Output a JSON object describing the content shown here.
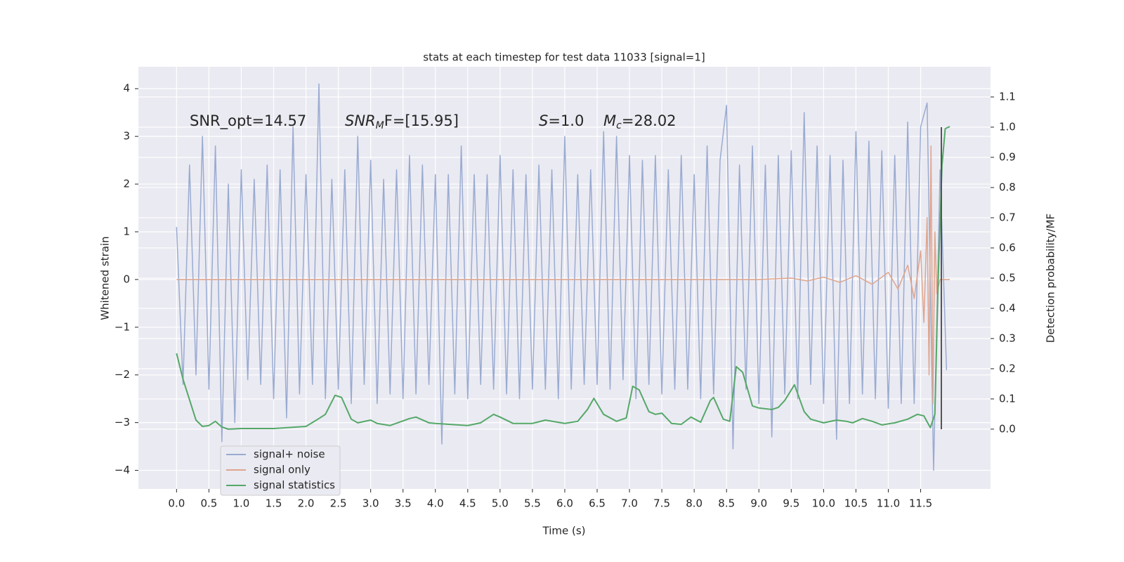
{
  "chart_data": {
    "type": "line",
    "title": "stats at each timestep for test data 11033 [signal=1]",
    "xlabel": "Time (s)",
    "ylabel": "Whitened strain",
    "y2label": "Detection probability/MF",
    "xlim": [
      -0.59,
      12.58
    ],
    "ylim": [
      -4.39,
      4.46
    ],
    "y2lim": [
      -0.198,
      1.2
    ],
    "xticks": [
      {
        "value": 0,
        "label": "0.0"
      },
      0.5,
      {
        "value": 1,
        "label": "1.0"
      },
      1.5,
      {
        "value": 2,
        "label": "2.0"
      },
      2.5,
      {
        "value": 3,
        "label": "3.0"
      },
      3.5,
      {
        "value": 4,
        "label": "4.0"
      },
      4.5,
      {
        "value": 5,
        "label": "5.0"
      },
      5.5,
      {
        "value": 6,
        "label": "6.0"
      },
      6.5,
      {
        "value": 7,
        "label": "7.0"
      },
      7.5,
      {
        "value": 8,
        "label": "8.0"
      },
      8.5,
      {
        "value": 9,
        "label": "9.0"
      },
      9.5,
      {
        "value": 10,
        "label": "10.0"
      },
      10.5,
      {
        "value": 11,
        "label": "11.0"
      },
      11.5
    ],
    "yticks": [
      {
        "value": -4,
        "label": "−4"
      },
      {
        "value": -3,
        "label": "−3"
      },
      {
        "value": -2,
        "label": "−2"
      },
      {
        "value": -1,
        "label": "−1"
      },
      0,
      1,
      2,
      3,
      4
    ],
    "y2ticks": [
      {
        "value": 0,
        "label": "0.0"
      },
      0.1,
      0.2,
      0.3,
      0.4,
      0.5,
      0.6,
      0.7,
      0.8,
      0.9,
      {
        "value": 1,
        "label": "1.0"
      },
      1.1
    ],
    "grid": true,
    "legend": "lower left",
    "vline_x": 11.82,
    "vline_color": "#555555",
    "annotations": [
      {
        "main": "SNR_opt=14.57"
      },
      {
        "main": "SNR",
        "sub": "M",
        "rest": "F=[15.95]"
      },
      {
        "main": "S",
        "rest": "=1.0"
      },
      {
        "main": "M",
        "sub": "c",
        "rest": "=28.02"
      }
    ],
    "series": [
      {
        "name": "signal+ noise",
        "color": "#9aabd1",
        "x": [
          0.0,
          0.1,
          0.2,
          0.3,
          0.4,
          0.5,
          0.6,
          0.7,
          0.8,
          0.9,
          1.0,
          1.1,
          1.2,
          1.3,
          1.4,
          1.5,
          1.6,
          1.7,
          1.8,
          1.9,
          2.0,
          2.1,
          2.2,
          2.3,
          2.4,
          2.5,
          2.6,
          2.7,
          2.8,
          2.9,
          3.0,
          3.1,
          3.2,
          3.3,
          3.4,
          3.5,
          3.6,
          3.7,
          3.8,
          3.9,
          4.0,
          4.1,
          4.2,
          4.3,
          4.4,
          4.5,
          4.6,
          4.7,
          4.8,
          4.9,
          5.0,
          5.1,
          5.2,
          5.3,
          5.4,
          5.5,
          5.6,
          5.7,
          5.8,
          5.9,
          6.0,
          6.1,
          6.2,
          6.3,
          6.4,
          6.5,
          6.6,
          6.7,
          6.8,
          6.9,
          7.0,
          7.1,
          7.2,
          7.3,
          7.4,
          7.5,
          7.6,
          7.7,
          7.8,
          7.9,
          8.0,
          8.1,
          8.2,
          8.3,
          8.4,
          8.5,
          8.6,
          8.7,
          8.8,
          8.9,
          9.0,
          9.1,
          9.2,
          9.3,
          9.4,
          9.5,
          9.6,
          9.7,
          9.8,
          9.9,
          10.0,
          10.1,
          10.2,
          10.3,
          10.4,
          10.5,
          10.6,
          10.7,
          10.8,
          10.9,
          11.0,
          11.1,
          11.2,
          11.3,
          11.4,
          11.5,
          11.6,
          11.7,
          11.8,
          11.9
        ],
        "values": [
          1.1,
          -2.2,
          2.4,
          -2.0,
          3.0,
          -2.3,
          2.8,
          -3.4,
          2.0,
          -3.0,
          2.3,
          -2.1,
          2.1,
          -2.2,
          2.4,
          -2.5,
          2.3,
          -2.9,
          3.2,
          -2.4,
          2.2,
          -2.2,
          4.1,
          -2.5,
          2.1,
          -2.3,
          2.3,
          -2.6,
          3.0,
          -2.2,
          2.5,
          -2.6,
          2.1,
          -2.4,
          2.3,
          -2.5,
          2.6,
          -2.4,
          2.4,
          -2.2,
          2.2,
          -3.45,
          2.2,
          -2.4,
          2.8,
          -2.5,
          2.2,
          -2.2,
          2.2,
          -2.3,
          2.6,
          -2.4,
          2.3,
          -2.5,
          2.2,
          -2.3,
          2.4,
          -2.3,
          2.3,
          -2.5,
          3.0,
          -2.3,
          2.2,
          -2.2,
          2.3,
          -2.2,
          3.1,
          -2.3,
          3.0,
          -2.1,
          2.6,
          -2.5,
          2.5,
          -2.2,
          2.6,
          -2.4,
          2.3,
          -2.3,
          2.6,
          -2.3,
          2.2,
          -2.5,
          2.8,
          -2.4,
          2.5,
          3.65,
          -3.55,
          2.4,
          -2.3,
          2.8,
          -2.6,
          2.4,
          -3.3,
          2.6,
          -2.4,
          2.7,
          -2.5,
          3.5,
          -2.2,
          2.8,
          -2.6,
          2.6,
          -3.35,
          2.5,
          -2.6,
          3.1,
          -2.4,
          2.9,
          -2.5,
          2.7,
          -2.7,
          2.6,
          -2.6,
          3.3,
          -2.6,
          3.2,
          3.7,
          -4.0,
          2.3,
          -1.9
        ]
      },
      {
        "name": "signal only",
        "color": "#e0a58c",
        "x": [
          0,
          9.0,
          9.5,
          9.75,
          10.0,
          10.25,
          10.5,
          10.75,
          11.0,
          11.15,
          11.3,
          11.4,
          11.5,
          11.55,
          11.6,
          11.63,
          11.66,
          11.69,
          11.72,
          11.75,
          11.8,
          11.95
        ],
        "values": [
          0,
          0,
          0.03,
          -0.03,
          0.05,
          -0.06,
          0.08,
          -0.1,
          0.15,
          -0.2,
          0.3,
          -0.4,
          0.6,
          -0.9,
          1.3,
          -2.0,
          2.8,
          -2.6,
          1.0,
          -0.3,
          0,
          0
        ]
      },
      {
        "name": "signal statistics",
        "color": "#55a868",
        "axis": "y2",
        "x": [
          0,
          0.1,
          0.3,
          0.4,
          0.5,
          0.6,
          0.7,
          0.8,
          1.0,
          1.5,
          2.0,
          2.2,
          2.3,
          2.45,
          2.55,
          2.7,
          2.8,
          3.0,
          3.1,
          3.3,
          3.6,
          3.7,
          3.9,
          4.0,
          4.5,
          4.7,
          4.9,
          5.0,
          5.2,
          5.5,
          5.7,
          6.0,
          6.2,
          6.35,
          6.45,
          6.6,
          6.8,
          6.95,
          7.05,
          7.15,
          7.3,
          7.4,
          7.5,
          7.65,
          7.8,
          7.95,
          8.1,
          8.25,
          8.3,
          8.45,
          8.55,
          8.65,
          8.75,
          8.9,
          9.0,
          9.2,
          9.3,
          9.4,
          9.55,
          9.7,
          9.8,
          10.0,
          10.2,
          10.35,
          10.45,
          10.6,
          10.75,
          10.9,
          11.1,
          11.3,
          11.45,
          11.55,
          11.65,
          11.72,
          11.77,
          11.83,
          11.88,
          11.95
        ],
        "values": [
          0.251,
          0.165,
          0.03,
          0.009,
          0.012,
          0.026,
          0.007,
          0.0,
          0.002,
          0.002,
          0.009,
          0.035,
          0.049,
          0.112,
          0.105,
          0.033,
          0.021,
          0.03,
          0.019,
          0.012,
          0.035,
          0.04,
          0.021,
          0.019,
          0.012,
          0.021,
          0.049,
          0.04,
          0.019,
          0.019,
          0.03,
          0.019,
          0.026,
          0.065,
          0.102,
          0.049,
          0.026,
          0.037,
          0.142,
          0.13,
          0.058,
          0.049,
          0.053,
          0.019,
          0.016,
          0.04,
          0.023,
          0.095,
          0.105,
          0.033,
          0.026,
          0.207,
          0.188,
          0.077,
          0.07,
          0.065,
          0.072,
          0.095,
          0.147,
          0.058,
          0.033,
          0.021,
          0.03,
          0.026,
          0.021,
          0.035,
          0.026,
          0.014,
          0.021,
          0.033,
          0.049,
          0.044,
          0.005,
          0.049,
          0.491,
          0.874,
          0.995,
          1.002
        ]
      }
    ]
  }
}
